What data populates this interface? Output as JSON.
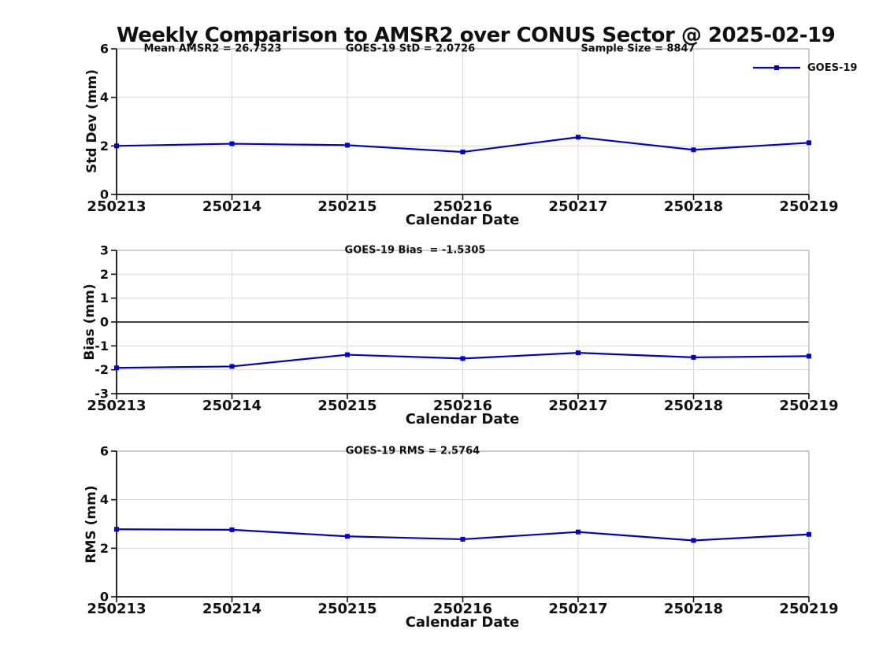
{
  "title": "Weekly Comparison to AMSR2 over CONUS Sector @ 2025-02-19",
  "legend": {
    "label": "GOES-19"
  },
  "colors": {
    "series_line": "#0000cc",
    "grid": "#d8d8d8",
    "box": "#b0b0b0",
    "axis": "#111111",
    "zero_line": "#000000",
    "text": "#111111"
  },
  "chart_data": [
    {
      "type": "line",
      "id": "std-dev",
      "annotations": [
        "Mean AMSR2 = 26.7523",
        "GOES-19 StD = 2.0726",
        "Sample Size = 8847"
      ],
      "x_categories": [
        "250213",
        "250214",
        "250215",
        "250216",
        "250217",
        "250218",
        "250219"
      ],
      "series": [
        {
          "name": "GOES-19",
          "values": [
            2.0,
            2.09,
            2.03,
            1.75,
            2.36,
            1.84,
            2.13
          ]
        }
      ],
      "xlabel": "Calendar Date",
      "ylabel": "Std Dev (mm)",
      "ylim": [
        0,
        6
      ],
      "yticks": [
        0,
        2,
        4,
        6
      ],
      "grid": true,
      "zero_line": false,
      "legend_position": "top-right"
    },
    {
      "type": "line",
      "id": "bias",
      "annotations": [
        "GOES-19 Bias  = -1.5305"
      ],
      "x_categories": [
        "250213",
        "250214",
        "250215",
        "250216",
        "250217",
        "250218",
        "250219"
      ],
      "series": [
        {
          "name": "GOES-19",
          "values": [
            -1.92,
            -1.86,
            -1.37,
            -1.53,
            -1.29,
            -1.48,
            -1.43
          ]
        }
      ],
      "xlabel": "Calendar Date",
      "ylabel": "Bias (mm)",
      "ylim": [
        -3,
        3
      ],
      "yticks": [
        -3,
        -2,
        -1,
        0,
        1,
        2,
        3
      ],
      "grid": true,
      "zero_line": true,
      "legend_position": "none"
    },
    {
      "type": "line",
      "id": "rms",
      "annotations": [
        "GOES-19 RMS = 2.5764"
      ],
      "x_categories": [
        "250213",
        "250214",
        "250215",
        "250216",
        "250217",
        "250218",
        "250219"
      ],
      "series": [
        {
          "name": "GOES-19",
          "values": [
            2.78,
            2.76,
            2.49,
            2.37,
            2.67,
            2.32,
            2.57
          ]
        }
      ],
      "xlabel": "Calendar Date",
      "ylabel": "RMS (mm)",
      "ylim": [
        0,
        6
      ],
      "yticks": [
        0,
        2,
        4,
        6
      ],
      "grid": true,
      "zero_line": false,
      "legend_position": "none"
    }
  ]
}
